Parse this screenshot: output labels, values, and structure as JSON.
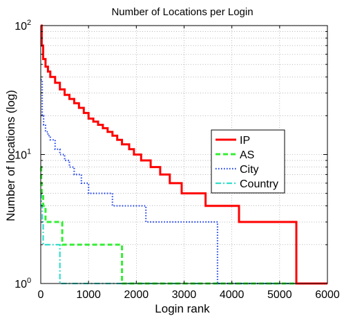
{
  "chart_data": {
    "type": "line",
    "title": "Number of Locations per Login",
    "xlabel": "Login rank",
    "ylabel": "Number of locations (log)",
    "xlim": [
      0,
      6000
    ],
    "ylim": [
      1,
      100
    ],
    "yscale": "log",
    "grid": true,
    "legend": "center-right",
    "x_ticks": [
      {
        "value": 0,
        "label": "0"
      },
      {
        "value": 1000,
        "label": "1000"
      },
      {
        "value": 2000,
        "label": "2000"
      },
      {
        "value": 3000,
        "label": "3000"
      },
      {
        "value": 4000,
        "label": "4000"
      },
      {
        "value": 5000,
        "label": "5000"
      },
      {
        "value": 6000,
        "label": "6000"
      }
    ],
    "y_ticks": [
      {
        "value": 1,
        "base": "10",
        "exp": "0"
      },
      {
        "value": 10,
        "base": "10",
        "exp": "1"
      },
      {
        "value": 100,
        "base": "10",
        "exp": "2"
      }
    ],
    "series": [
      {
        "name": "IP",
        "color": "#ff0000",
        "style": "solid",
        "x": [
          0,
          20,
          50,
          100,
          150,
          200,
          300,
          400,
          500,
          600,
          700,
          800,
          900,
          1000,
          1100,
          1200,
          1300,
          1400,
          1500,
          1600,
          1700,
          1750,
          1850,
          1950,
          2100,
          2300,
          2500,
          2700,
          2950,
          3450,
          4150,
          5350,
          5350,
          6000
        ],
        "y": [
          100,
          70,
          55,
          48,
          44,
          40,
          36,
          32,
          29,
          27,
          25,
          23,
          21,
          19,
          18,
          17,
          16,
          15,
          14,
          13,
          12,
          12,
          11,
          10,
          9,
          8,
          7,
          6,
          5,
          4,
          3,
          2,
          1,
          1
        ]
      },
      {
        "name": "AS",
        "color": "#33ee33",
        "style": "dashed",
        "x": [
          0,
          10,
          20,
          50,
          100,
          150,
          450,
          1700,
          1700,
          6000
        ],
        "y": [
          8,
          6,
          5,
          4,
          3,
          3,
          2,
          2,
          1,
          1
        ]
      },
      {
        "name": "City",
        "color": "#2244ee",
        "style": "dotted",
        "x": [
          0,
          30,
          60,
          100,
          150,
          200,
          300,
          400,
          500,
          600,
          700,
          850,
          1000,
          1100,
          1250,
          1400,
          1500,
          2200,
          3700,
          3700,
          6000
        ],
        "y": [
          38,
          20,
          17,
          15,
          14,
          13,
          11,
          10,
          9,
          8,
          7,
          6,
          5,
          5,
          5,
          5,
          4,
          3,
          2,
          1,
          1
        ]
      },
      {
        "name": "Country",
        "color": "#33ddcc",
        "style": "dashdot",
        "x": [
          0,
          10,
          30,
          50,
          400,
          400,
          6000
        ],
        "y": [
          5,
          4,
          3,
          2,
          2,
          1,
          1
        ]
      }
    ]
  }
}
